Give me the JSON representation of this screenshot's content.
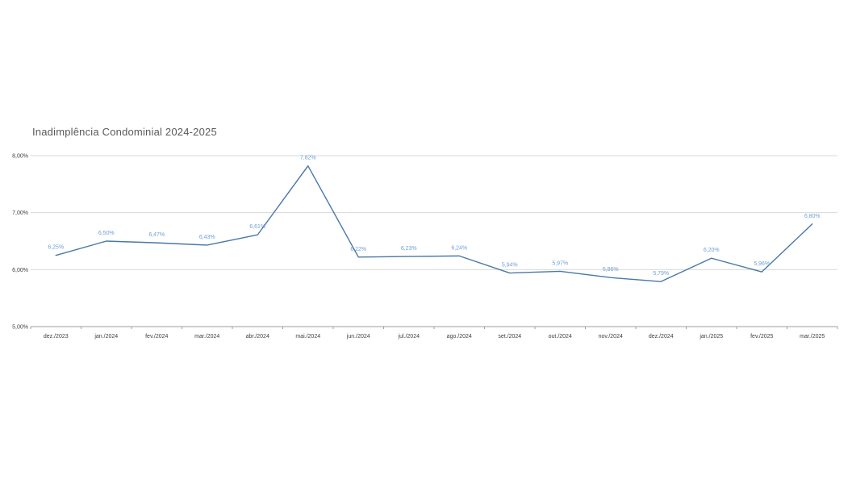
{
  "chart": {
    "title": "Inadimplência Condominial 2024-2025",
    "colors": {
      "line": "#4878a8",
      "data_label": "#6fa0d6",
      "grid": "#d9d9d9",
      "axis": "#9e9e9e",
      "tick_text": "#404040",
      "title_text": "#595959",
      "background": "#ffffff"
    }
  },
  "chart_data": {
    "type": "line",
    "title": "Inadimplência Condominial 2024-2025",
    "categories": [
      "dez./2023",
      "jan./2024",
      "fev./2024",
      "mar./2024",
      "abr./2024",
      "mai./2024",
      "jun./2024",
      "jul./2024",
      "ago./2024",
      "set./2024",
      "out./2024",
      "nov./2024",
      "dez./2024",
      "jan./2025",
      "fev./2025",
      "mar./2025"
    ],
    "values": [
      6.25,
      6.5,
      6.47,
      6.43,
      6.61,
      7.82,
      6.22,
      6.23,
      6.24,
      5.94,
      5.97,
      5.86,
      5.79,
      6.2,
      5.96,
      6.8
    ],
    "value_labels": [
      "6,25%",
      "6,50%",
      "6,47%",
      "6,43%",
      "6,61%",
      "7,82%",
      "6,22%",
      "6,23%",
      "6,24%",
      "5,94%",
      "5,97%",
      "5,86%",
      "5,79%",
      "6,20%",
      "5,96%",
      "6,80%"
    ],
    "xlabel": "",
    "ylabel": "",
    "ylim": [
      5.0,
      8.0
    ],
    "ytick_labels": [
      "5,00%",
      "6,00%",
      "7,00%",
      "8,00%"
    ],
    "ytick_values": [
      5.0,
      6.0,
      7.0,
      8.0
    ],
    "grid": true,
    "legend": "none",
    "series_name": "Inadimplência"
  }
}
